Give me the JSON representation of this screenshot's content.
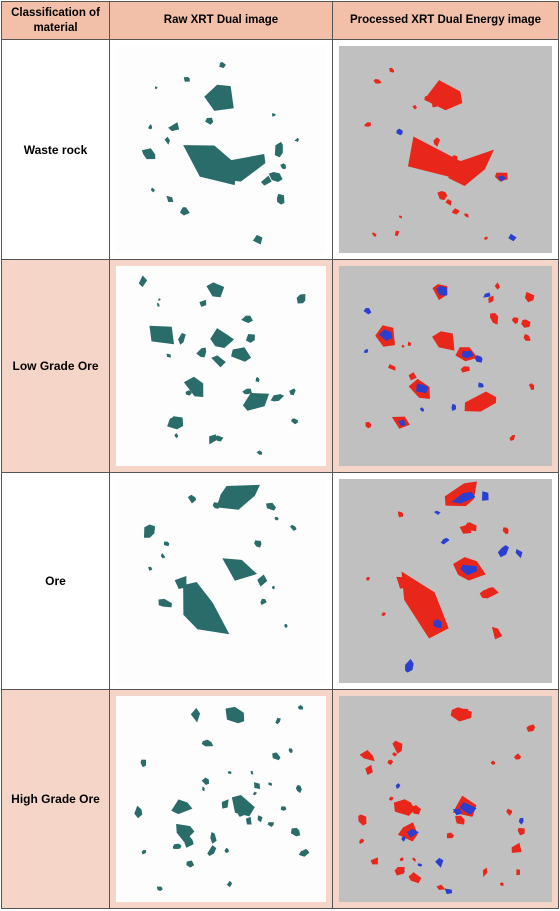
{
  "header": {
    "col1": "Classification of material",
    "col2": "Raw XRT Dual image",
    "col3": "Processed XRT Dual Energy image"
  },
  "rows": [
    {
      "label": "Waste rock",
      "background": "#ffffff"
    },
    {
      "label": "Low Grade Ore",
      "background": "#f5d5c7"
    },
    {
      "label": "Ore",
      "background": "#ffffff"
    },
    {
      "label": "High Grade Ore",
      "background": "#f5d5c7"
    }
  ],
  "colors": {
    "header_bg": "#f2c0a8",
    "raw_rock": "#2a6c6a",
    "processed_bg": "#c0c0c0",
    "processed_red": "#e8261a",
    "processed_blue": "#2a3fd0"
  }
}
